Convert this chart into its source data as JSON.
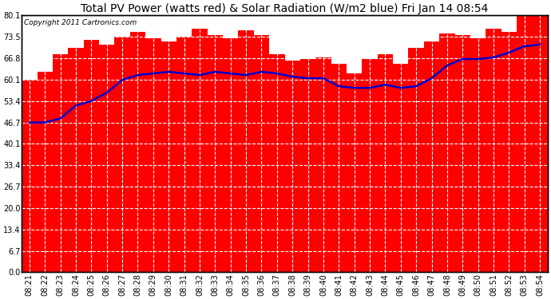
{
  "title": "Total PV Power (watts red) & Solar Radiation (W/m2 blue) Fri Jan 14 08:54",
  "copyright_text": "Copyright 2011 Cartronics.com",
  "x_labels": [
    "08:21",
    "08:22",
    "08:23",
    "08:24",
    "08:25",
    "08:26",
    "08:27",
    "08:28",
    "08:29",
    "08:30",
    "08:31",
    "08:32",
    "08:33",
    "08:34",
    "08:35",
    "08:36",
    "08:37",
    "08:38",
    "08:39",
    "08:40",
    "08:41",
    "08:42",
    "08:43",
    "08:44",
    "08:45",
    "08:46",
    "08:47",
    "08:48",
    "08:49",
    "08:50",
    "08:51",
    "08:52",
    "08:53",
    "08:54"
  ],
  "bar_values": [
    60.0,
    62.5,
    68.0,
    70.0,
    72.5,
    71.0,
    73.5,
    75.0,
    73.0,
    72.0,
    73.5,
    76.0,
    74.0,
    73.0,
    75.5,
    74.0,
    68.0,
    66.0,
    66.5,
    67.0,
    65.0,
    62.0,
    66.5,
    68.0,
    65.0,
    70.0,
    72.0,
    74.5,
    74.0,
    73.0,
    76.0,
    75.0,
    80.0,
    80.1
  ],
  "line_values": [
    46.7,
    46.7,
    48.0,
    52.0,
    53.4,
    56.0,
    60.0,
    61.5,
    62.0,
    62.5,
    62.0,
    61.5,
    62.5,
    62.0,
    61.5,
    62.5,
    62.0,
    61.0,
    60.5,
    60.5,
    58.0,
    57.5,
    57.5,
    58.5,
    57.5,
    58.0,
    60.5,
    64.5,
    66.5,
    66.5,
    67.0,
    68.5,
    70.5,
    71.0
  ],
  "bar_color": "#ff0000",
  "line_color": "#0000cc",
  "plot_bg_color": "#ffffff",
  "ylim": [
    0.0,
    80.1
  ],
  "yticks": [
    0.0,
    6.7,
    13.4,
    20.0,
    26.7,
    33.4,
    40.1,
    46.7,
    53.4,
    60.1,
    66.8,
    73.5,
    80.1
  ],
  "grid_color_major": "#aaaaaa",
  "grid_color_minor": "#ffffff",
  "title_fontsize": 10,
  "tick_fontsize": 7,
  "copyright_fontsize": 6.5
}
